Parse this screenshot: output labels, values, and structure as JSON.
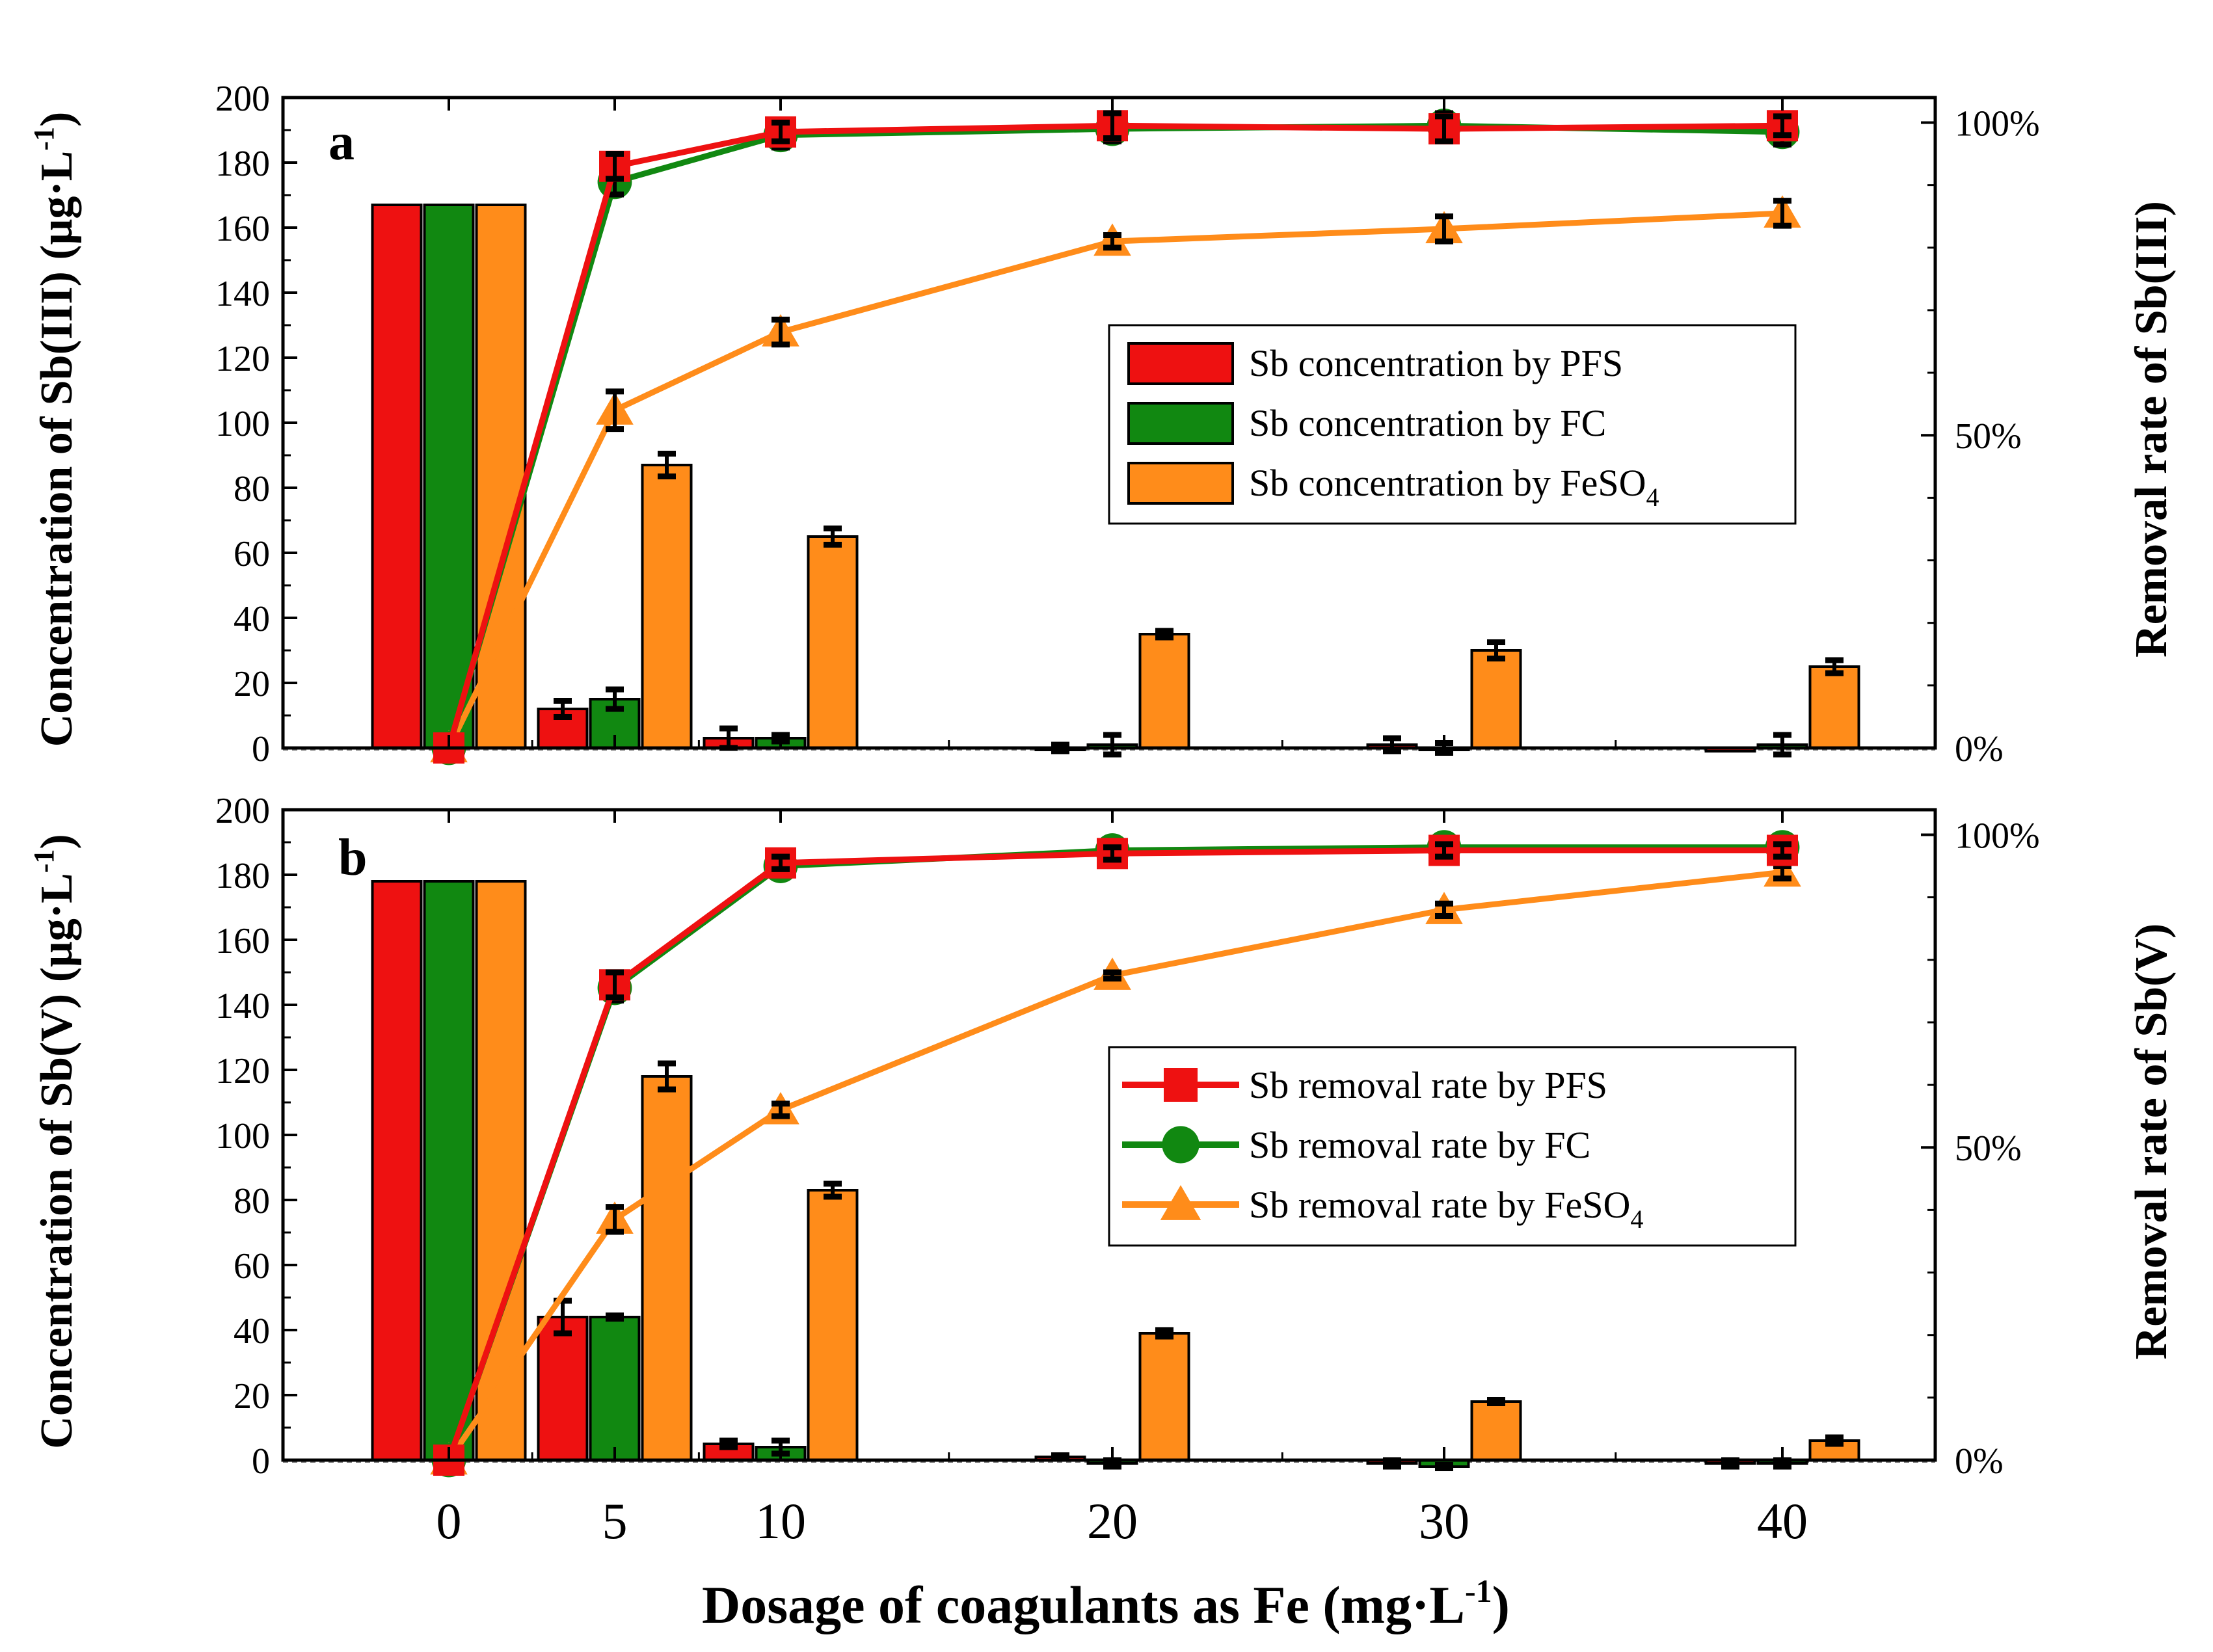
{
  "colors": {
    "PFS": "#ee1111",
    "FC": "#118811",
    "FeSO4": "#ff8c1a",
    "error": "#000000"
  },
  "xaxis": {
    "label": "Dosage of coagulants as Fe (mg·L",
    "label_sup": "-1",
    "label_end": ")",
    "ticks": [
      "0",
      "5",
      "10",
      "20",
      "30",
      "40"
    ]
  },
  "chart_data": [
    {
      "type": "bar+line",
      "panel_label": "a",
      "ylabel_left": "Concentration of Sb(III) (μg·L",
      "ylabel_left_sup": "-1",
      "ylabel_left_end": ")",
      "ylabel_right": "Removal rate of Sb(III)",
      "ylim": [
        0,
        200
      ],
      "yticks": [
        "0",
        "20",
        "40",
        "60",
        "80",
        "100",
        "120",
        "140",
        "160",
        "180",
        "200"
      ],
      "right_ylim": [
        0,
        1.04
      ],
      "right_ticks": [
        {
          "v": 0,
          "label": "0%"
        },
        {
          "v": 0.5,
          "label": "50%"
        },
        {
          "v": 1,
          "label": "100%"
        }
      ],
      "x": [
        0,
        5,
        10,
        20,
        30,
        40
      ],
      "bars": [
        {
          "name": "PFS",
          "values": [
            167,
            12,
            3,
            0,
            1,
            -1
          ],
          "errors": [
            0,
            2.5,
            3,
            1,
            2,
            0
          ]
        },
        {
          "name": "FC",
          "values": [
            167,
            15,
            3,
            1,
            0,
            1
          ],
          "errors": [
            0,
            3,
            1,
            3,
            1.5,
            3
          ]
        },
        {
          "name": "FeSO4",
          "values": [
            167,
            87,
            65,
            35,
            30,
            25
          ],
          "errors": [
            0,
            3.5,
            2.5,
            1,
            2.5,
            2
          ]
        }
      ],
      "lines": [
        {
          "name": "PFS",
          "marker": "square",
          "values": [
            0,
            0.93,
            0.985,
            0.995,
            0.99,
            0.995
          ],
          "errors": [
            0,
            0.02,
            0.015,
            0.02,
            0.02,
            0.015
          ]
        },
        {
          "name": "FC",
          "marker": "circle",
          "values": [
            0,
            0.905,
            0.98,
            0.99,
            0.995,
            0.985
          ],
          "errors": [
            0,
            0.02,
            0.02,
            0.02,
            0.02,
            0.02
          ]
        },
        {
          "name": "FeSO4",
          "marker": "triangle",
          "values": [
            0,
            0.54,
            0.665,
            0.81,
            0.83,
            0.855
          ],
          "errors": [
            0,
            0.03,
            0.02,
            0.01,
            0.02,
            0.02
          ]
        }
      ],
      "legend": [
        {
          "kind": "bar",
          "series": "PFS",
          "text": "Sb concentration by PFS",
          "sub": ""
        },
        {
          "kind": "bar",
          "series": "FC",
          "text": "Sb concentration by FC",
          "sub": ""
        },
        {
          "kind": "bar",
          "series": "FeSO4",
          "text": "Sb concentration by FeSO",
          "sub": "4"
        }
      ]
    },
    {
      "type": "bar+line",
      "panel_label": "b",
      "ylabel_left": "Concentration of Sb(V) (μg·L",
      "ylabel_left_sup": "-1",
      "ylabel_left_end": ")",
      "ylabel_right": "Removal rate of Sb(V)",
      "ylim": [
        0,
        200
      ],
      "yticks": [
        "0",
        "20",
        "40",
        "60",
        "80",
        "100",
        "120",
        "140",
        "160",
        "180",
        "200"
      ],
      "right_ylim": [
        0,
        1.04
      ],
      "right_ticks": [
        {
          "v": 0,
          "label": "0%"
        },
        {
          "v": 0.5,
          "label": "50%"
        },
        {
          "v": 1,
          "label": "100%"
        }
      ],
      "x": [
        0,
        5,
        10,
        20,
        30,
        40
      ],
      "bars": [
        {
          "name": "PFS",
          "values": [
            178,
            44,
            5,
            1,
            -1,
            -1
          ],
          "errors": [
            0,
            5,
            1,
            0.5,
            1,
            1
          ]
        },
        {
          "name": "FC",
          "values": [
            178,
            44,
            4,
            -1,
            -2,
            -1
          ],
          "errors": [
            0,
            0.5,
            2,
            1,
            0.5,
            1
          ]
        },
        {
          "name": "FeSO4",
          "values": [
            178,
            118,
            83,
            39,
            18,
            6
          ],
          "errors": [
            0,
            4,
            2,
            1,
            0.5,
            1
          ]
        }
      ],
      "lines": [
        {
          "name": "PFS",
          "marker": "square",
          "values": [
            0,
            0.76,
            0.955,
            0.97,
            0.975,
            0.975
          ],
          "errors": [
            0,
            0.02,
            0.01,
            0.01,
            0.01,
            0.01
          ]
        },
        {
          "name": "FC",
          "marker": "circle",
          "values": [
            0,
            0.755,
            0.95,
            0.975,
            0.98,
            0.98
          ],
          "errors": [
            0,
            0.02,
            0.01,
            0.01,
            0.01,
            0.01
          ]
        },
        {
          "name": "FeSO4",
          "marker": "triangle",
          "values": [
            0,
            0.385,
            0.56,
            0.775,
            0.88,
            0.94
          ],
          "errors": [
            0,
            0.02,
            0.01,
            0.005,
            0.01,
            0.01
          ]
        }
      ],
      "legend": [
        {
          "kind": "line",
          "series": "PFS",
          "marker": "square",
          "text": "Sb removal rate by PFS",
          "sub": ""
        },
        {
          "kind": "line",
          "series": "FC",
          "marker": "circle",
          "text": "Sb removal rate by FC",
          "sub": ""
        },
        {
          "kind": "line",
          "series": "FeSO4",
          "marker": "triangle",
          "text": "Sb removal rate by FeSO",
          "sub": "4"
        }
      ]
    }
  ]
}
